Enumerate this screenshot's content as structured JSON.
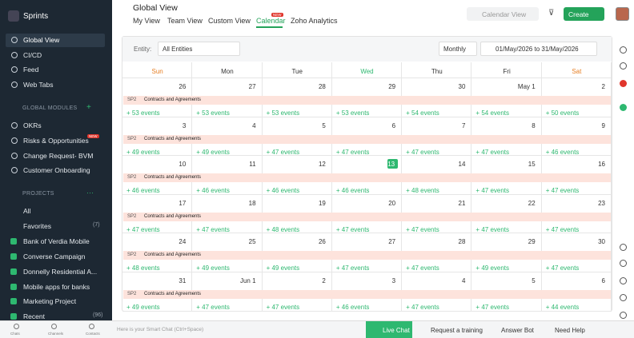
{
  "sidebar": {
    "app": "Sprints",
    "nav": [
      "Global View",
      "CI/CD",
      "Feed",
      "Web Tabs"
    ],
    "modules_heading": "GLOBAL MODULES",
    "modules": [
      {
        "label": "OKRs"
      },
      {
        "label": "Risks & Opportunities",
        "badge": "NEW"
      },
      {
        "label": "Change Request- BVM"
      },
      {
        "label": "Customer Onboarding"
      }
    ],
    "projects_heading": "PROJECTS",
    "projects": [
      {
        "label": "All"
      },
      {
        "label": "Favorites",
        "count": "(7)"
      },
      {
        "label": "Bank of Verdia Mobile"
      },
      {
        "label": "Converse Campaign"
      },
      {
        "label": "Donnelly Residential A..."
      },
      {
        "label": "Mobile apps for banks"
      },
      {
        "label": "Marketing Project"
      },
      {
        "label": "Recent",
        "count": "(96)"
      }
    ]
  },
  "header": {
    "title": "Global View",
    "tabs": [
      "My View",
      "Team View",
      "Custom View",
      "Calendar",
      "Zoho Analytics"
    ],
    "tab_badge": "NEW",
    "calendar_view": "Calendar View",
    "create": "Create"
  },
  "toolbar": {
    "entity_label": "Entity:",
    "entity": "All Entities",
    "period": "Monthly",
    "range": "01/May/2026 to 31/May/2026"
  },
  "calendar": {
    "weekdays": [
      "Sun",
      "Mon",
      "Tue",
      "Wed",
      "Thu",
      "Fri",
      "Sat"
    ],
    "event_tag": "SP2",
    "event_title": "Contracts and Agreements",
    "weeks": [
      {
        "days": [
          "26",
          "27",
          "28",
          "29",
          "30",
          "May 1",
          "2"
        ],
        "counts": [
          "+ 53 events",
          "+ 53 events",
          "+ 53 events",
          "+ 53 events",
          "+ 54 events",
          "+ 54 events",
          "+ 50 events"
        ]
      },
      {
        "days": [
          "3",
          "4",
          "5",
          "6",
          "7",
          "8",
          "9"
        ],
        "counts": [
          "+ 49 events",
          "+ 49 events",
          "+ 47 events",
          "+ 47 events",
          "+ 47 events",
          "+ 47 events",
          "+ 46 events"
        ]
      },
      {
        "days": [
          "10",
          "11",
          "12",
          "13",
          "14",
          "15",
          "16"
        ],
        "counts": [
          "+ 46 events",
          "+ 46 events",
          "+ 46 events",
          "+ 46 events",
          "+ 48 events",
          "+ 47 events",
          "+ 47 events"
        ]
      },
      {
        "days": [
          "17",
          "18",
          "19",
          "20",
          "21",
          "22",
          "23"
        ],
        "counts": [
          "+ 47 events",
          "+ 47 events",
          "+ 48 events",
          "+ 47 events",
          "+ 47 events",
          "+ 47 events",
          "+ 47 events"
        ]
      },
      {
        "days": [
          "24",
          "25",
          "26",
          "27",
          "28",
          "29",
          "30"
        ],
        "counts": [
          "+ 48 events",
          "+ 49 events",
          "+ 49 events",
          "+ 47 events",
          "+ 47 events",
          "+ 49 events",
          "+ 47 events"
        ]
      },
      {
        "days": [
          "31",
          "Jun 1",
          "2",
          "3",
          "4",
          "5",
          "6"
        ],
        "counts": [
          "+ 49 events",
          "+ 47 events",
          "+ 47 events",
          "+ 46 events",
          "+ 47 events",
          "+ 47 events",
          "+ 44 events"
        ]
      }
    ]
  },
  "bottom": {
    "sidebar_links": [
      "Chats",
      "Channels",
      "Contacts"
    ],
    "smart_chat": "Here is your Smart Chat (Ctrl+Space)",
    "live_chat": "Live Chat",
    "training": "Request a training",
    "answer_bot": "Answer Bot",
    "help": "Need Help"
  }
}
